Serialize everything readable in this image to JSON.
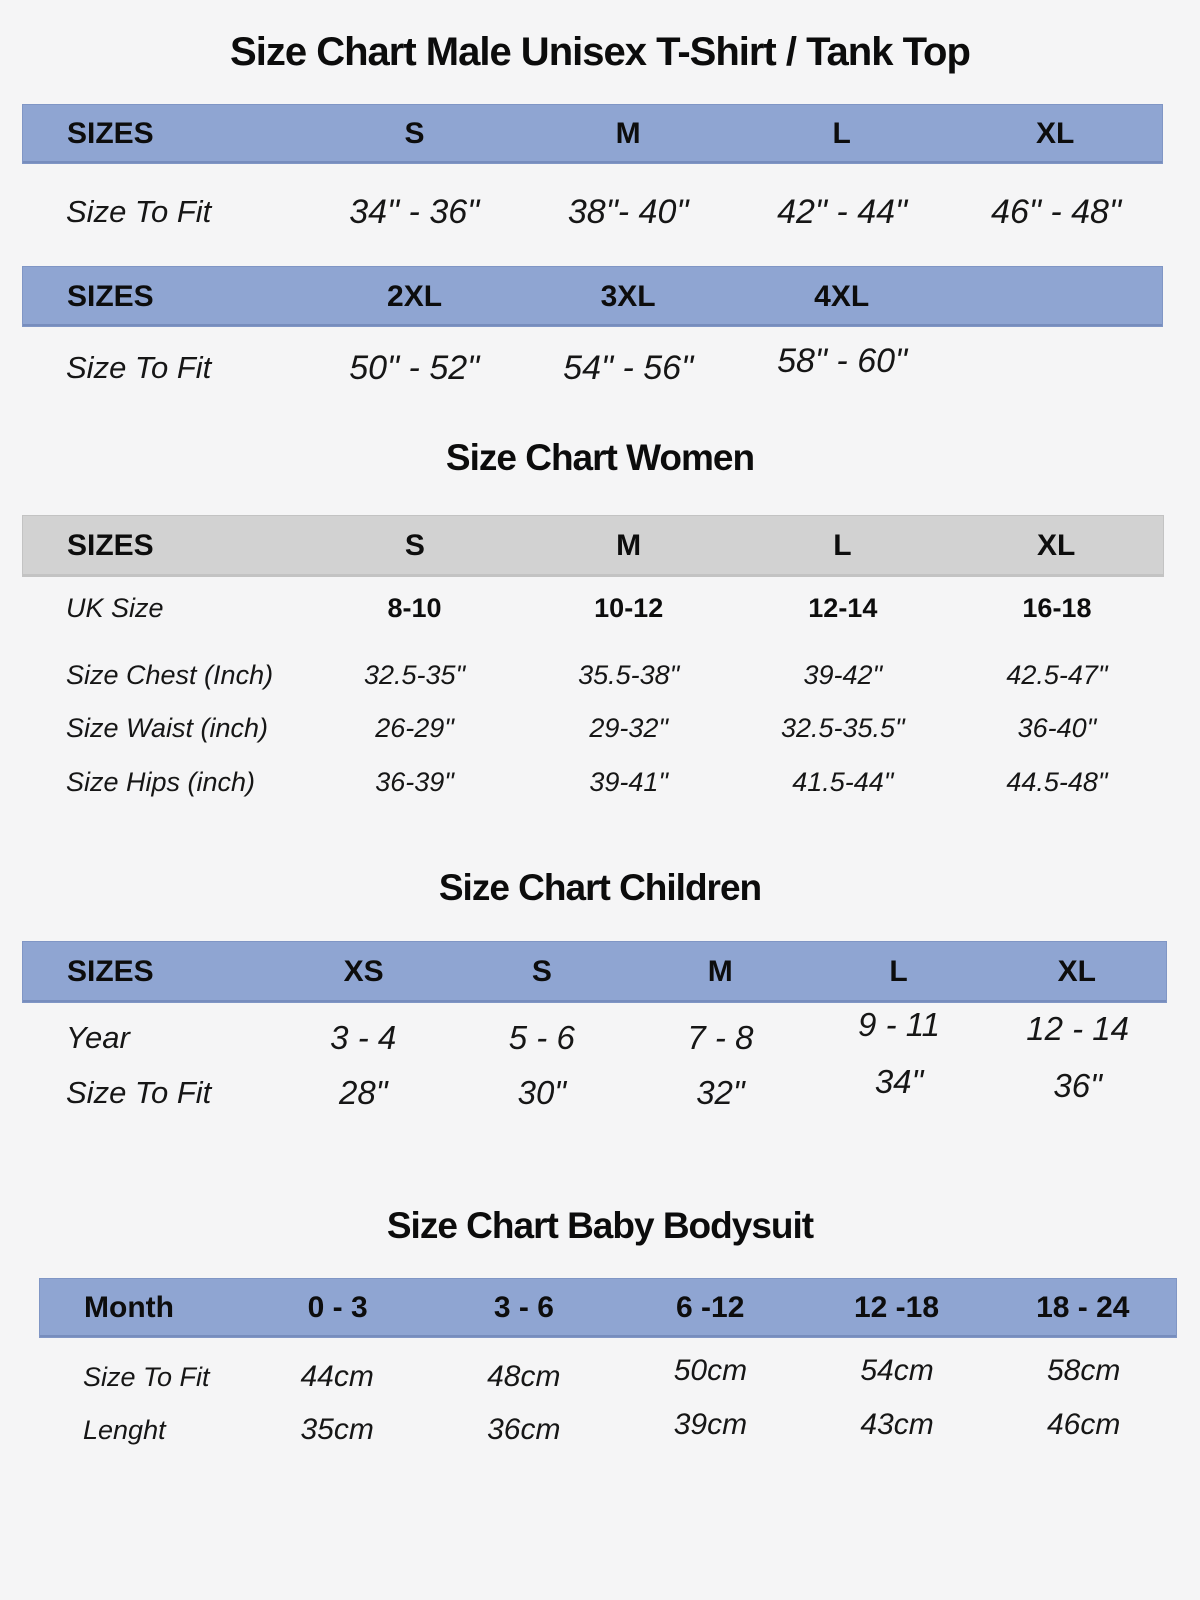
{
  "colors": {
    "header_blue": "#8fa5d2",
    "header_gray": "#d2d2d2",
    "page_background": "#f5f5f6",
    "text": "#151515"
  },
  "male_chart": {
    "title": "Size Chart Male Unisex T-Shirt / Tank Top",
    "table1": {
      "headers": [
        "SIZES",
        "S",
        "M",
        "L",
        "XL"
      ],
      "row": {
        "label": "Size To Fit",
        "values": [
          "34\" - 36\"",
          "38\"- 40\"",
          "42\" - 44\"",
          "46\" - 48\""
        ]
      }
    },
    "table2": {
      "headers": [
        "SIZES",
        "2XL",
        "3XL",
        "4XL"
      ],
      "row": {
        "label": "Size To Fit",
        "values": [
          "50\" - 52\"",
          "54\" - 56\"",
          "58\" - 60\""
        ]
      }
    }
  },
  "women_chart": {
    "title": "Size Chart Women",
    "headers": [
      "SIZES",
      "S",
      "M",
      "L",
      "XL"
    ],
    "rows": [
      {
        "label": "UK Size",
        "values": [
          "8-10",
          "10-12",
          "12-14",
          "16-18"
        ]
      },
      {
        "label": "Size Chest (Inch)",
        "values": [
          "32.5-35\"",
          "35.5-38\"",
          "39-42\"",
          "42.5-47\""
        ]
      },
      {
        "label": "Size Waist (inch)",
        "values": [
          "26-29\"",
          "29-32\"",
          "32.5-35.5\"",
          "36-40\""
        ]
      },
      {
        "label": "Size Hips (inch)",
        "values": [
          "36-39\"",
          "39-41\"",
          "41.5-44\"",
          "44.5-48\""
        ]
      }
    ]
  },
  "children_chart": {
    "title": "Size Chart Children",
    "headers": [
      "SIZES",
      "XS",
      "S",
      "M",
      "L",
      "XL"
    ],
    "rows": [
      {
        "label": "Year",
        "values": [
          "3 - 4",
          "5 - 6",
          "7 - 8",
          "9 - 11",
          "12 - 14"
        ]
      },
      {
        "label": "Size To Fit",
        "values": [
          "28\"",
          "30\"",
          "32\"",
          "34\"",
          "36\""
        ]
      }
    ]
  },
  "baby_chart": {
    "title": "Size Chart Baby Bodysuit",
    "headers": [
      "Month",
      "0 - 3",
      "3 - 6",
      "6 -12",
      "12 -18",
      "18 - 24"
    ],
    "rows": [
      {
        "label": "Size To Fit",
        "values": [
          "44cm",
          "48cm",
          "50cm",
          "54cm",
          "58cm"
        ]
      },
      {
        "label": "Lenght",
        "values": [
          "35cm",
          "36cm",
          "39cm",
          "43cm",
          "46cm"
        ]
      }
    ]
  }
}
